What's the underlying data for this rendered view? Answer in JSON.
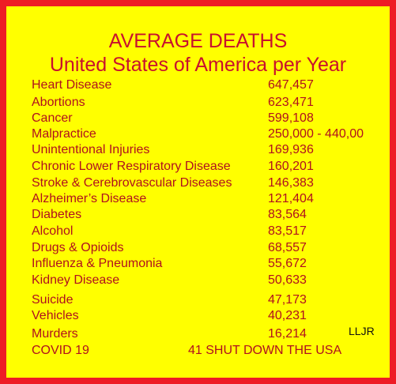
{
  "title": {
    "line1": "AVERAGE DEATHS",
    "line2": "United States of America per Year"
  },
  "rows": [
    {
      "label": "Heart Disease",
      "value": "647,457"
    },
    {
      "label": "Abortions",
      "value": "623,471"
    },
    {
      "label": "Cancer",
      "value": "599,108"
    },
    {
      "label": "Malpractice",
      "value": "250,000 - 440,00"
    },
    {
      "label": "Unintentional Injuries",
      "value": "169,936"
    },
    {
      "label": "Chronic Lower Respiratory Disease",
      "value": "160,201"
    },
    {
      "label": "Stroke & Cerebrovascular Diseases",
      "value": "146,383"
    },
    {
      "label": "Alzheimer’s Disease",
      "value": "121,404"
    },
    {
      "label": "Diabetes",
      "value": "83,564"
    },
    {
      "label": "Alcohol",
      "value": "83,517"
    },
    {
      "label": "Drugs & Opioids",
      "value": "68,557"
    },
    {
      "label": "Influenza & Pneumonia",
      "value": "55,672"
    },
    {
      "label": "Kidney Disease",
      "value": "50,633"
    },
    {
      "label": "Suicide",
      "value": "47,173"
    },
    {
      "label": "Vehicles",
      "value": "40,231"
    },
    {
      "label": "Murders",
      "value": "16,214"
    }
  ],
  "covid": {
    "label": "COVID 19",
    "value": "41 SHUT DOWN THE USA"
  },
  "signature": "LLJR",
  "colors": {
    "border": "#ee1c25",
    "background": "#ffff00",
    "text": "#b0101e",
    "title": "#c8102e"
  }
}
